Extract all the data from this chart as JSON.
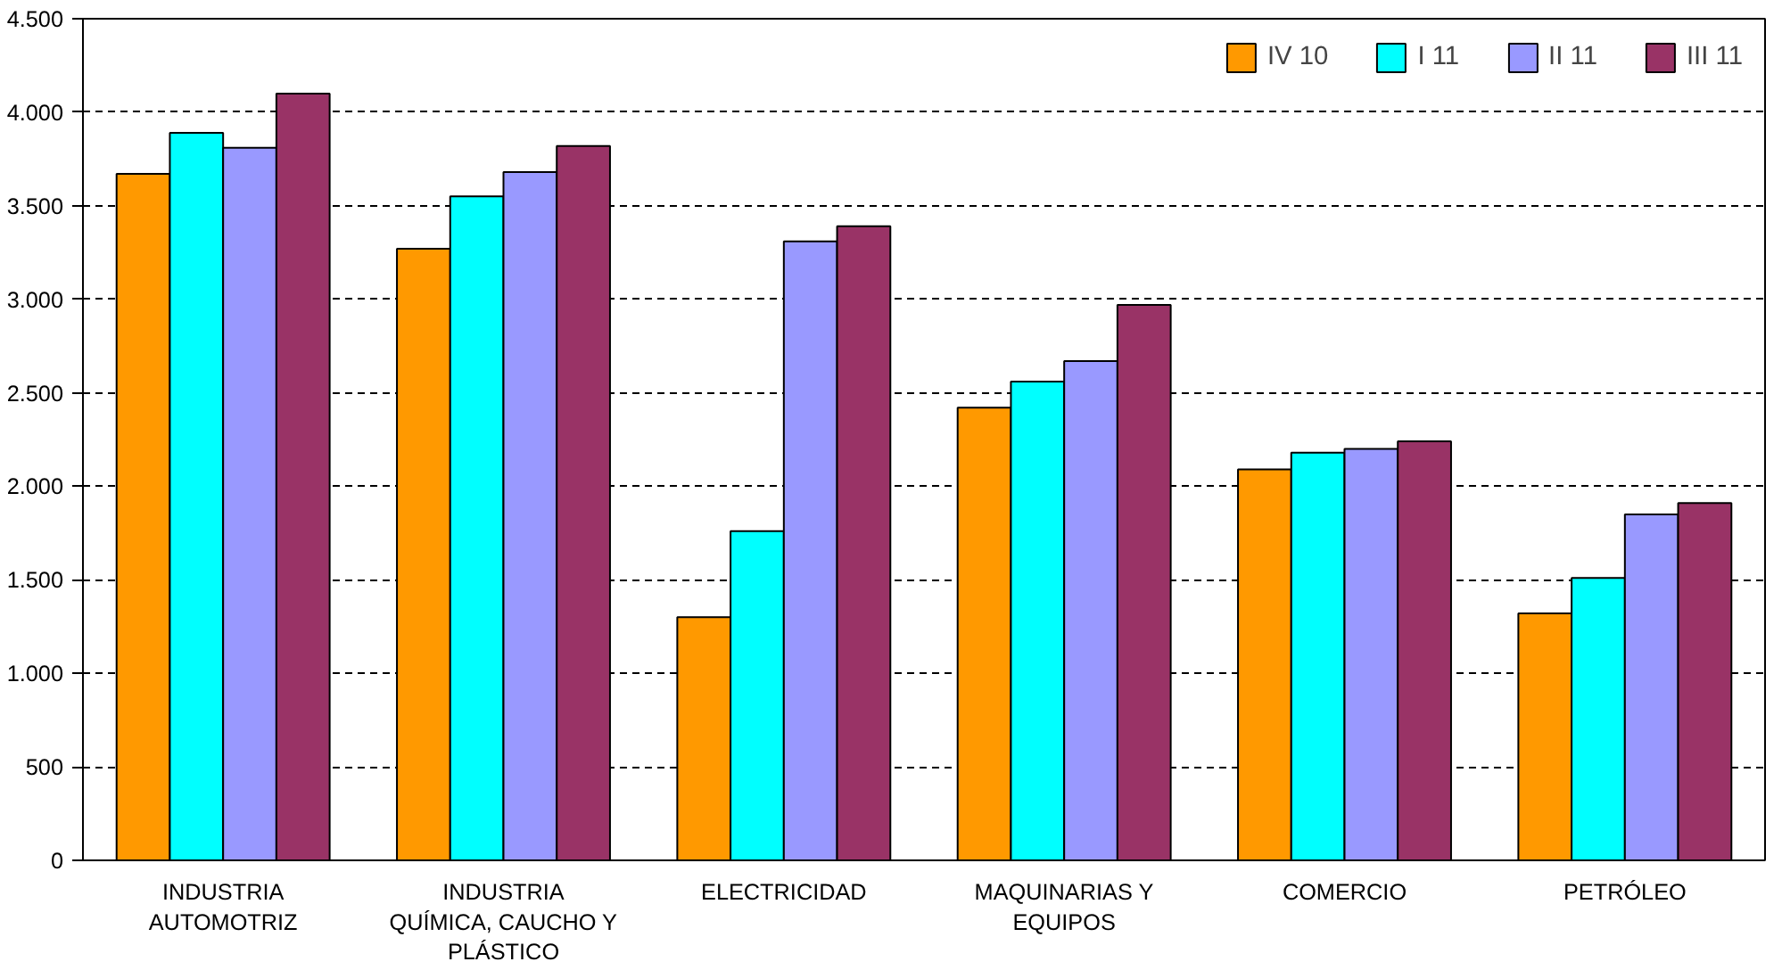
{
  "chart_data": {
    "type": "bar",
    "categories": [
      "INDUSTRIA\nAUTOMOTRIZ",
      "INDUSTRIA\nQUÍMICA, CAUCHO Y\nPLÁSTICO",
      "ELECTRICIDAD",
      "MAQUINARIAS Y\nEQUIPOS",
      "COMERCIO",
      "PETRÓLEO"
    ],
    "series": [
      {
        "name": "IV 10",
        "color": "#ff9900",
        "values": [
          3670,
          3270,
          1300,
          2420,
          2090,
          1320
        ]
      },
      {
        "name": "I 11",
        "color": "#00ffff",
        "values": [
          3890,
          3550,
          1760,
          2560,
          2180,
          1510
        ]
      },
      {
        "name": "II 11",
        "color": "#9999ff",
        "values": [
          3810,
          3680,
          3310,
          2670,
          2200,
          1850
        ]
      },
      {
        "name": "III 11",
        "color": "#993366",
        "values": [
          4100,
          3820,
          3390,
          2970,
          2240,
          1910
        ]
      }
    ],
    "ylim": [
      0,
      4500
    ],
    "yticks": [
      0,
      {
        "value": 500,
        "label": "500"
      },
      {
        "value": 1000,
        "label": "1.000"
      },
      {
        "value": 1500,
        "label": "1.500"
      },
      {
        "value": 2000,
        "label": "2.000"
      },
      {
        "value": 2500,
        "label": "2.500"
      },
      {
        "value": 3000,
        "label": "3.000"
      },
      {
        "value": 3500,
        "label": "3.500"
      },
      {
        "value": 4000,
        "label": "4.000"
      },
      {
        "value": 4500,
        "label": "4.500"
      }
    ],
    "grid": "y",
    "line_style": "dashed",
    "legend": "top right"
  }
}
